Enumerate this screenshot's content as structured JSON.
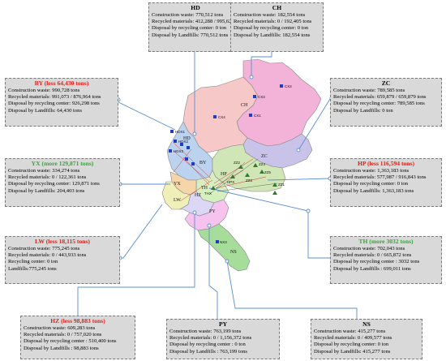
{
  "boxes": {
    "hd": {
      "title": "HD",
      "lines": [
        "Construction waste: 770,512 tons",
        "Recycled materials: 412,288 / 995,628 tons",
        "Disposal by recycling center: 0 ton",
        "Disposal by Landfills: 770,512 tons"
      ]
    },
    "ch": {
      "title": "CH",
      "lines": [
        "Construction waste: 182,554 tons",
        "Recycled materials: 0 / 192,405 tons",
        "Disposal by recycling center: 0 ton",
        "Disposal by Landfills: 182,554 tons"
      ]
    },
    "by": {
      "title": "BY (less 64,430 tons)",
      "lines": [
        "Construction waste: 990,728 tons",
        "Recycled materials: 991,073 / 876,964 tons",
        "Disposal by recycling center: 926,298 tons",
        "Disposal by Landfills: 64,430 tons"
      ]
    },
    "zc": {
      "title": "ZC",
      "lines": [
        "Construction waste: 789,585 tons",
        "Recycled materials: 659,879 / 659,879 tons",
        "Disposal by recycling center: 789,585 tons",
        "Disposal by Landfills: 0 ton"
      ]
    },
    "yx": {
      "title": "YX (more 129,871 tons)",
      "lines": [
        "Construction waste: 334,274 tons",
        "Recycled materials: 0 / 122,361 tons",
        "Disposal by recycling center: 129,871 tons",
        "Disposal by Landfills: 204,403 tons"
      ]
    },
    "hp": {
      "title": "HP (less 116,594 tons)",
      "lines": [
        "Construction waste: 1,363,183 tons",
        "Recycled materials: 577,987 / 916,843 tons",
        "Disposal by recycling center: 0 ton",
        "Disposal by Landfills: 1,363,183 tons"
      ]
    },
    "lw": {
      "title": "LW (less 18,115 tons)",
      "lines": [
        "Construction waste: 775,245 tons",
        "Recycled materials: 0 / 443,933 tons",
        "Recycling center: 0 ton",
        "Landfills:775,245 tons"
      ]
    },
    "th": {
      "title": "TH (more 3032 tons)",
      "lines": [
        "Construction waste: 702,043 tons",
        "Recycled materials: 0 / 665,872 tons",
        "Disposal by recycling center : 3032 tons",
        "Disposal by Landfills : 699,011 tons"
      ]
    },
    "hz": {
      "title": "HZ (less 98,883 tons)",
      "lines": [
        "Construction waste: 609,283 tons",
        "Recycled materials: 0 / 757,020 tons",
        "Disposal by recycling center : 510,400 tons",
        "Disposal by Landfills : 98,883 tons"
      ]
    },
    "py": {
      "title": "PY",
      "lines": [
        "Construction waste: 763,199 tons",
        "Recycled materials: 0 / 1,156,372 tons",
        "Disposal by recycling center : 0 ton",
        "Disposal by Landfills : 763,199 tons"
      ]
    },
    "ns": {
      "title": "NS",
      "lines": [
        "Construction waste: 415,277 tons",
        "Recycled materials: 0 / 409,577 tons",
        "Disposal by recycling center: 0 ton",
        "Disposal by Landfills: 415,277 tons"
      ]
    }
  },
  "map": {
    "district_labels": {
      "hd": "HD",
      "ch": "CH",
      "by": "BY",
      "zc": "ZC",
      "hp": "HP",
      "th": "TH",
      "py": "PY",
      "ns": "NS",
      "lw": "LW",
      "yx": "YX",
      "hz": "HZ"
    },
    "sites": {
      "cx1": "CX1",
      "cx2": "CX2",
      "cx3": "CX3",
      "cx4": "CX4",
      "hdx1": "HDX1",
      "hdx2": "HDX2",
      "hdx3": "HDX3",
      "zz1": "ZZ1",
      "zz2": "ZZ2",
      "zz3": "ZZ3",
      "zz4": "ZZ4",
      "zz5": "ZZ5",
      "hpx": "HPX",
      "thx": "THX",
      "nx3": "NX3"
    }
  },
  "colors": {
    "hd": "#f6c8c8",
    "ch": "#f3b2d8",
    "by": "#bcd3f0",
    "zc": "#c9c3ea",
    "hp": "#d1e6b6",
    "th": "#d6eec0",
    "py": "#f6c2ee",
    "ns": "#a7dd9a",
    "lw": "#eef0b8",
    "yx": "#f6d5a8",
    "hz": "#dcd7f5",
    "leader": "#5a8fd0",
    "site_square": "#1f3cc8",
    "site_triangle": "#2e7a2e",
    "flow": "#d83333"
  }
}
